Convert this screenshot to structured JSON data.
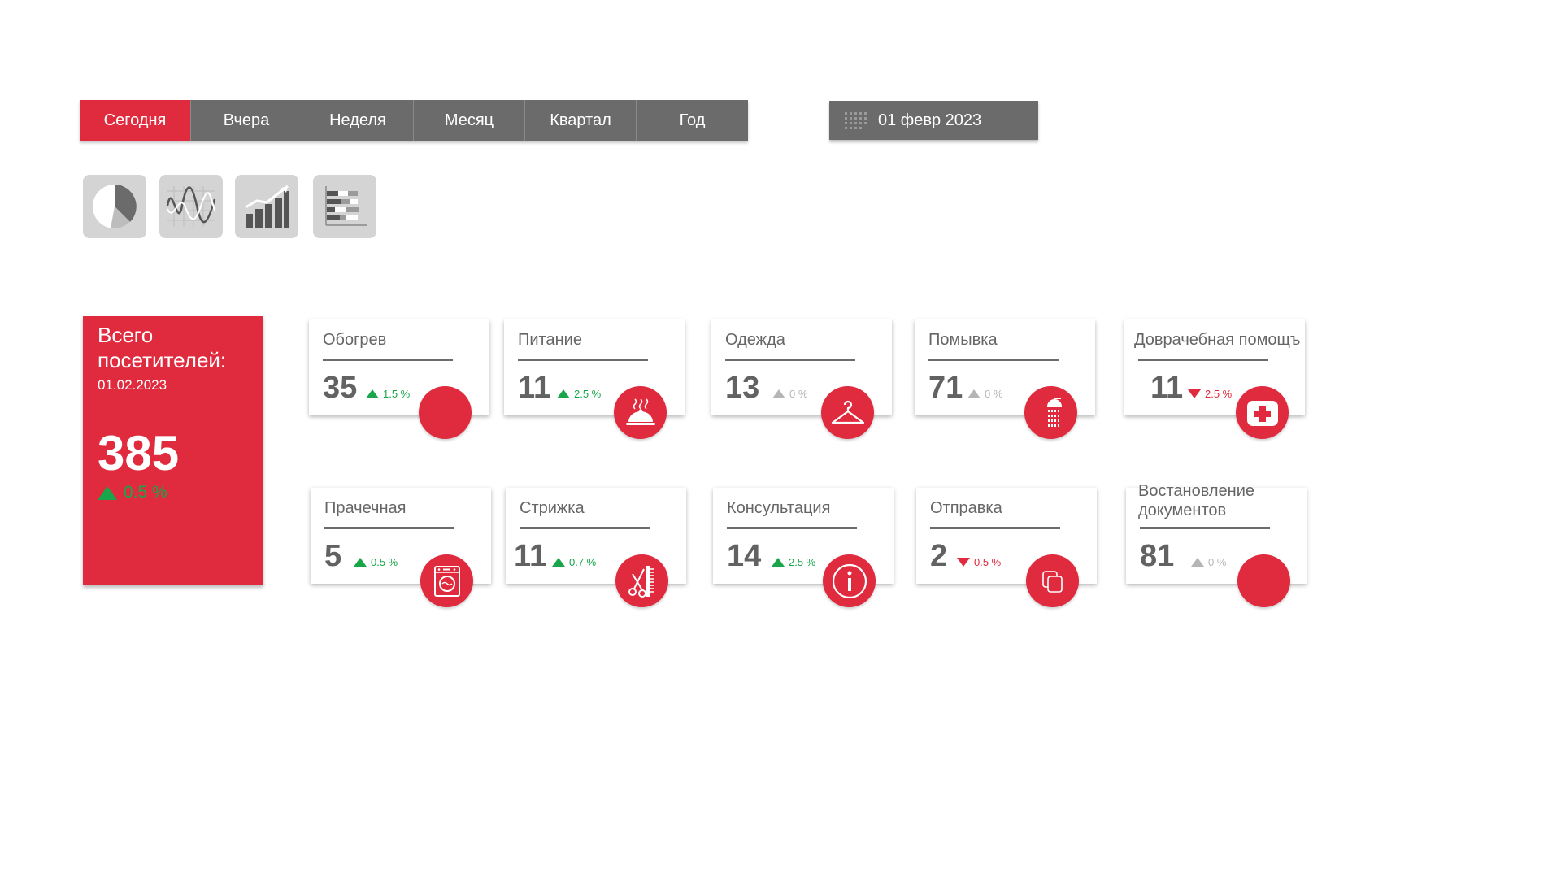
{
  "tabs": [
    "Сегодня",
    "Вчера",
    "Неделя",
    "Месяц",
    "Квартал",
    "Год"
  ],
  "active_tab": "Сегодня",
  "date_picker": {
    "value": "01 февр 2023",
    "icon": "calendar-icon"
  },
  "chart_types": [
    "pie-chart-icon",
    "wave-chart-icon",
    "bar-chart-icon",
    "stacked-bar-chart-icon"
  ],
  "total": {
    "label": "Всего посетителей:",
    "date": "01.02.2023",
    "value": "385",
    "change": "0.5 %",
    "trend": "up"
  },
  "cards": [
    {
      "title": "Обогрев",
      "value": "35",
      "change": "1.5 %",
      "trend": "up",
      "icon": "heating-icon"
    },
    {
      "title": "Питание",
      "value": "11",
      "change": "2.5 %",
      "trend": "up",
      "icon": "food-tray-icon"
    },
    {
      "title": "Одежда",
      "value": "13",
      "change": "0 %",
      "trend": "flat",
      "icon": "hanger-icon"
    },
    {
      "title": "Помывка",
      "value": "71",
      "change": "0 %",
      "trend": "flat",
      "icon": "shower-icon"
    },
    {
      "title": "Доврачебная помощъ",
      "value": "11",
      "change": "2.5 %",
      "trend": "down",
      "icon": "first-aid-icon"
    },
    {
      "title": "Прачечная",
      "value": "5",
      "change": "0.5 %",
      "trend": "up",
      "icon": "washing-machine-icon"
    },
    {
      "title": "Стрижка",
      "value": "11",
      "change": "0.7 %",
      "trend": "up",
      "icon": "scissors-comb-icon"
    },
    {
      "title": "Консультация",
      "value": "14",
      "change": "2.5 %",
      "trend": "up",
      "icon": "info-icon"
    },
    {
      "title": "Отправка",
      "value": "2",
      "change": "0.5 %",
      "trend": "down",
      "icon": "copy-documents-icon"
    },
    {
      "title": "Востановление документов",
      "value": "81",
      "change": "0 %",
      "trend": "flat",
      "icon": "documents-restore-icon"
    }
  ],
  "colors": {
    "accent": "#e02a3e",
    "tab_bg": "#6b6b6b",
    "up": "#19a64a",
    "down": "#e02a3e",
    "flat": "#b5b5b5"
  }
}
